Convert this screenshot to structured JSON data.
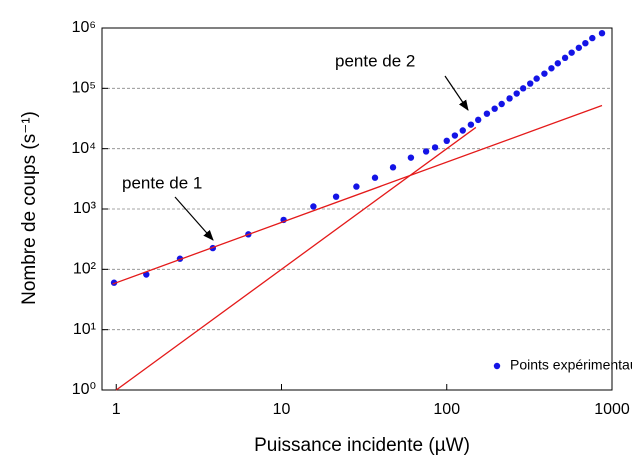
{
  "chart_data": {
    "type": "scatter",
    "x_label": "Puissance incidente (µW)",
    "y_label": "Nombre de coups (s⁻¹)",
    "log_x": true,
    "log_y": true,
    "grid": true,
    "legend": "lower right",
    "xlim": [
      0.82,
      1000
    ],
    "ylim": [
      1,
      1000000
    ],
    "xticks": [
      1,
      10,
      100,
      1000
    ],
    "yticks": [
      {
        "value": 1,
        "label": "10⁰"
      },
      {
        "value": 10,
        "label": "10¹"
      },
      {
        "value": 100,
        "label": "10²"
      },
      {
        "value": 1000,
        "label": "10³"
      },
      {
        "value": 10000,
        "label": "10⁴"
      },
      {
        "value": 100000,
        "label": "10⁵"
      },
      {
        "value": 1000000,
        "label": "10⁶"
      }
    ],
    "annotations": [
      {
        "text": "pente de 1"
      },
      {
        "text": "pente de 2"
      }
    ],
    "series": [
      {
        "name": "Points expérimentaux",
        "type": "scatter",
        "color": "#1414e6",
        "x": [
          0.97,
          1.52,
          2.43,
          3.84,
          6.3,
          10.3,
          15.6,
          21.4,
          28.4,
          36.8,
          47.3,
          60.7,
          75,
          85,
          100,
          112,
          125,
          140,
          155,
          175,
          195,
          215,
          240,
          265,
          290,
          320,
          350,
          390,
          430,
          470,
          520,
          570,
          630,
          690,
          760,
          870
        ],
        "values": [
          60,
          82,
          150,
          225,
          380,
          660,
          1100,
          1600,
          2350,
          3300,
          4900,
          7100,
          9000,
          10500,
          13500,
          16500,
          20000,
          25000,
          30000,
          38000,
          46000,
          55000,
          68000,
          82000,
          100000,
          120000,
          145000,
          175000,
          215000,
          260000,
          320000,
          390000,
          470000,
          560000,
          680000,
          820000
        ]
      },
      {
        "type": "line",
        "color": "#e41a1a",
        "x": [
          0.95,
          870
        ],
        "values": [
          57,
          52000
        ]
      },
      {
        "type": "line",
        "color": "#e41a1a",
        "x": [
          1,
          150
        ],
        "values": [
          1,
          22500
        ]
      }
    ]
  }
}
